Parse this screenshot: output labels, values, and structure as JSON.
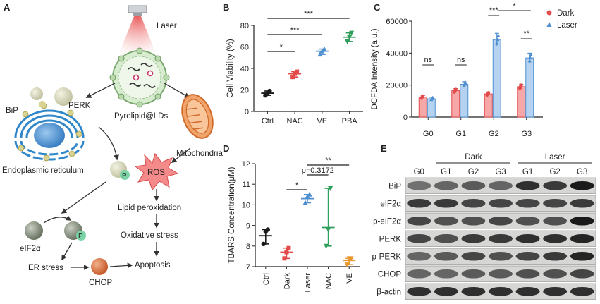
{
  "panels": [
    "A",
    "B",
    "C",
    "D",
    "E"
  ],
  "panel_a": {
    "laser": "Laser",
    "pyrolipid": "Pyrolipid@LDs",
    "bip": "BiP",
    "perk": "PERK",
    "er": "Endoplasmic reticulum",
    "mito": "Mitochondria",
    "ros": "ROS",
    "p": "P",
    "lipid": "Lipid peroxidation",
    "eif2a": "eIF2α",
    "oxidative": "Oxidative stress",
    "er_stress": "ER stress",
    "chop": "CHOP",
    "apoptosis": "Apoptosis"
  },
  "chart_data": [
    {
      "panel": "B",
      "type": "scatter",
      "categories": [
        "Ctrl",
        "NAC",
        "VE",
        "PBA"
      ],
      "ylabel": "Cell Viability (%)",
      "ylim": [
        0,
        80
      ],
      "yticks": [
        "0",
        "20",
        "40",
        "60",
        "80"
      ],
      "means": [
        17,
        35,
        56,
        69
      ],
      "points": [
        [
          15,
          17,
          19
        ],
        [
          32,
          35,
          37
        ],
        [
          53,
          56,
          58
        ],
        [
          65,
          69,
          73
        ]
      ],
      "colors": [
        "#1a1a1a",
        "#e34a4a",
        "#4f8fd0",
        "#2e9e5b"
      ],
      "significance": [
        {
          "from": 0,
          "to": 1,
          "label": "*"
        },
        {
          "from": 0,
          "to": 2,
          "label": "***"
        },
        {
          "from": 0,
          "to": 3,
          "label": "***"
        }
      ]
    },
    {
      "panel": "C",
      "type": "bar",
      "categories": [
        "G0",
        "G1",
        "G2",
        "G3"
      ],
      "ylabel": "DCFDA Intensity (a.u.)",
      "ylim": [
        0,
        60000
      ],
      "yticks": [
        "0",
        "20000",
        "40000",
        "60000"
      ],
      "series": [
        {
          "name": "Dark",
          "values": [
            12500,
            16500,
            14500,
            19000
          ],
          "color": "#e34a4a"
        },
        {
          "name": "Laser",
          "values": [
            11500,
            20500,
            48500,
            37000
          ],
          "color": "#4f8fd0"
        }
      ],
      "significance": [
        {
          "group": 0,
          "label": "ns"
        },
        {
          "group": 1,
          "label": "ns"
        },
        {
          "group": 2,
          "label": "***"
        },
        {
          "group": 3,
          "label": "**"
        },
        {
          "between": [
            2,
            3
          ],
          "label": "*"
        }
      ],
      "legend": "top-right"
    },
    {
      "panel": "D",
      "type": "scatter",
      "categories": [
        "Ctrl",
        "Dark",
        "Laser",
        "NAC",
        "VE"
      ],
      "ylabel": "TBARS Concentration(μM)",
      "ylim": [
        7,
        12
      ],
      "yticks": [
        "7",
        "8",
        "9",
        "10",
        "11",
        "12"
      ],
      "means": [
        8.5,
        7.7,
        10.3,
        8.9,
        7.3
      ],
      "points": [
        [
          8.1,
          8.7,
          8.8
        ],
        [
          7.4,
          7.7,
          7.9
        ],
        [
          10.1,
          10.4,
          10.5
        ],
        [
          8.0,
          8.8,
          10.8
        ],
        [
          7.1,
          7.4,
          7.4
        ]
      ],
      "colors": [
        "#1a1a1a",
        "#e34a4a",
        "#4f8fd0",
        "#2e9e5b",
        "#e8962e"
      ],
      "significance": [
        {
          "from": 1,
          "to": 2,
          "label": "*"
        },
        {
          "from": 2,
          "to": 3,
          "label": "p=0.3172"
        },
        {
          "from": 2,
          "to": 4,
          "label": "**"
        }
      ]
    }
  ],
  "panel_e": {
    "dark": "Dark",
    "laser": "Laser",
    "lanes": [
      "G0",
      "G1",
      "G2",
      "G3",
      "G1",
      "G2",
      "G3"
    ],
    "rows": [
      "BiP",
      "eIF2α",
      "p-eIF2α",
      "PERK",
      "p-PERK",
      "CHOP",
      "β-actin"
    ],
    "intensity": [
      [
        0.55,
        0.6,
        0.65,
        0.6,
        0.85,
        0.8,
        0.95
      ],
      [
        0.8,
        0.8,
        0.75,
        0.75,
        0.75,
        0.75,
        0.8
      ],
      [
        0.75,
        0.7,
        0.7,
        0.75,
        0.7,
        0.7,
        0.95
      ],
      [
        0.75,
        0.7,
        0.8,
        0.8,
        0.85,
        0.85,
        0.9
      ],
      [
        0.6,
        0.65,
        0.75,
        0.7,
        0.75,
        0.8,
        0.9
      ],
      [
        0.6,
        0.6,
        0.65,
        0.65,
        0.7,
        0.7,
        0.75
      ],
      [
        0.85,
        0.85,
        0.85,
        0.85,
        0.85,
        0.85,
        0.85
      ]
    ]
  }
}
